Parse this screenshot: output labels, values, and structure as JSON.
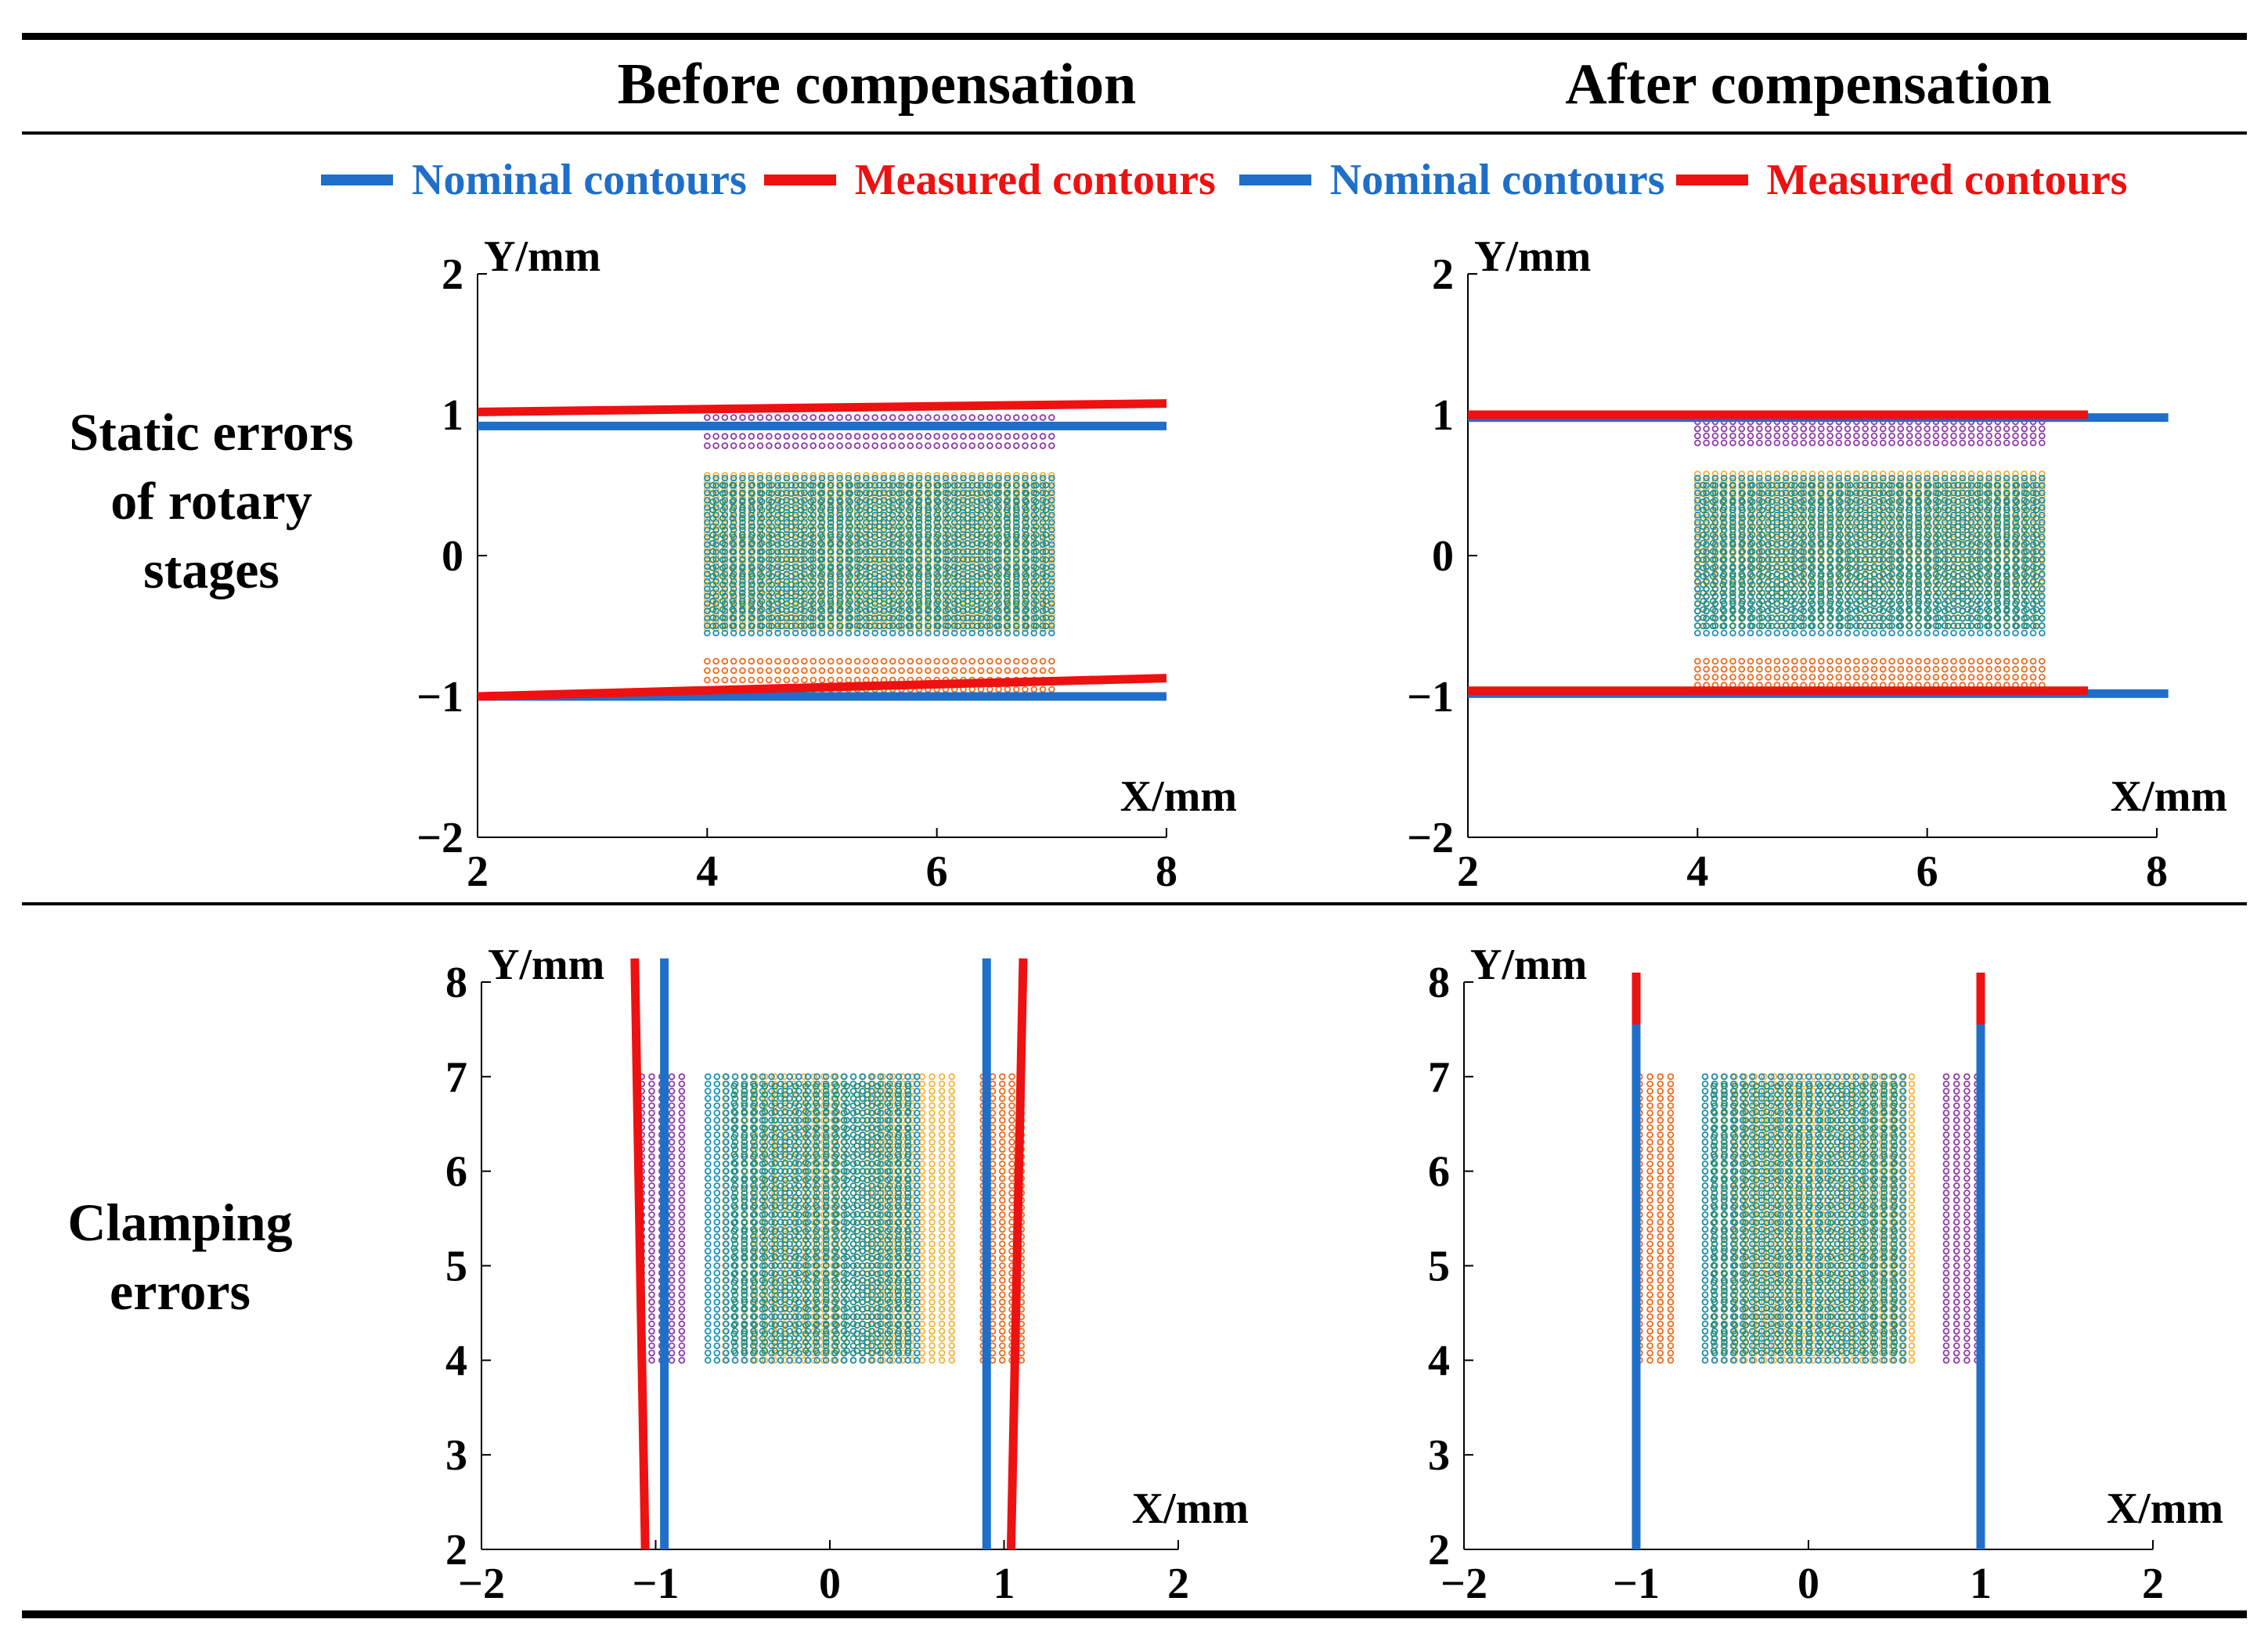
{
  "column_titles": [
    "Before compensation",
    "After compensation"
  ],
  "row_labels": [
    [
      "Static errors",
      "of rotary",
      "stages"
    ],
    [
      "Clamping",
      "errors"
    ]
  ],
  "legend": [
    {
      "label": "Nominal contours",
      "color": "#1f6fc9"
    },
    {
      "label": "Measured contours",
      "color": "#ee1111"
    },
    {
      "label": "Nominal contours",
      "color": "#1f6fc9"
    },
    {
      "label": "Measured contours",
      "color": "#ee1111"
    }
  ],
  "colors": {
    "nominal": "#1f6fc9",
    "measured": "#ee1111",
    "purple": "#8e3aa8",
    "orange": "#ec6a1c",
    "yellow": "#f2b43a",
    "teal": "#1b8fb8",
    "green": "#2a8f6a"
  },
  "chart_data": [
    {
      "id": "static-before",
      "type": "scatter",
      "xlabel": "X/mm",
      "ylabel": "Y/mm",
      "xlim": [
        2,
        8
      ],
      "ylim": [
        -2,
        2
      ],
      "xticks": [
        2,
        4,
        6,
        8
      ],
      "yticks": [
        -2,
        -1,
        0,
        1,
        2
      ],
      "lines": [
        {
          "kind": "nominal",
          "x": [
            2,
            8
          ],
          "y": [
            0.92,
            0.92
          ]
        },
        {
          "kind": "nominal",
          "x": [
            2,
            8
          ],
          "y": [
            -1.0,
            -1.0
          ]
        },
        {
          "kind": "measured",
          "x": [
            2,
            8
          ],
          "y": [
            1.02,
            1.08
          ]
        },
        {
          "kind": "measured",
          "x": [
            2,
            8
          ],
          "y": [
            -1.0,
            -0.87
          ]
        }
      ],
      "point_regions": [
        {
          "color": "purple",
          "x": [
            4.0,
            7.0
          ],
          "y": [
            0.78,
            0.98
          ],
          "nx": 40,
          "ny": 4
        },
        {
          "color": "orange",
          "x": [
            4.0,
            7.0
          ],
          "y": [
            -0.95,
            -0.75
          ],
          "nx": 40,
          "ny": 4
        },
        {
          "color": "yellow",
          "x": [
            4.0,
            7.0
          ],
          "y": [
            -0.52,
            0.57
          ],
          "nx": 40,
          "ny": 22
        },
        {
          "color": "teal",
          "x": [
            4.0,
            7.0
          ],
          "y": [
            -0.55,
            0.55
          ],
          "nx": 40,
          "ny": 22
        },
        {
          "color": "green",
          "x": [
            4.05,
            6.95
          ],
          "y": [
            -0.5,
            0.5
          ],
          "nx": 35,
          "ny": 18
        }
      ]
    },
    {
      "id": "static-after",
      "type": "scatter",
      "xlabel": "X/mm",
      "ylabel": "Y/mm",
      "xlim": [
        2,
        8
      ],
      "ylim": [
        -2,
        2
      ],
      "xticks": [
        2,
        4,
        6,
        8
      ],
      "yticks": [
        -2,
        -1,
        0,
        1,
        2
      ],
      "lines": [
        {
          "kind": "nominal",
          "x": [
            2,
            8.1
          ],
          "y": [
            0.98,
            0.98
          ]
        },
        {
          "kind": "nominal",
          "x": [
            2,
            8.1
          ],
          "y": [
            -0.98,
            -0.98
          ]
        },
        {
          "kind": "measured",
          "x": [
            2,
            7.4
          ],
          "y": [
            1.0,
            1.0
          ]
        },
        {
          "kind": "measured",
          "x": [
            2,
            7.4
          ],
          "y": [
            -0.96,
            -0.96
          ]
        }
      ],
      "point_regions": [
        {
          "color": "purple",
          "x": [
            4.0,
            7.0
          ],
          "y": [
            0.8,
            0.95
          ],
          "nx": 40,
          "ny": 4
        },
        {
          "color": "orange",
          "x": [
            4.0,
            7.0
          ],
          "y": [
            -0.92,
            -0.75
          ],
          "nx": 40,
          "ny": 4
        },
        {
          "color": "yellow",
          "x": [
            4.0,
            7.0
          ],
          "y": [
            -0.5,
            0.58
          ],
          "nx": 40,
          "ny": 22
        },
        {
          "color": "teal",
          "x": [
            4.0,
            7.0
          ],
          "y": [
            -0.55,
            0.55
          ],
          "nx": 40,
          "ny": 22
        },
        {
          "color": "green",
          "x": [
            4.05,
            6.95
          ],
          "y": [
            -0.5,
            0.5
          ],
          "nx": 35,
          "ny": 18
        }
      ]
    },
    {
      "id": "clamping-before",
      "type": "scatter",
      "xlabel": "X/mm",
      "ylabel": "Y/mm",
      "xlim": [
        -2,
        2
      ],
      "ylim": [
        2,
        8
      ],
      "xticks": [
        -2,
        -1,
        0,
        1,
        2
      ],
      "yticks": [
        2,
        3,
        4,
        5,
        6,
        7,
        8
      ],
      "lines": [
        {
          "kind": "nominal",
          "x": [
            -0.95,
            -0.95
          ],
          "y": [
            2,
            8.25
          ]
        },
        {
          "kind": "nominal",
          "x": [
            0.9,
            0.9
          ],
          "y": [
            2,
            8.25
          ]
        },
        {
          "kind": "measured",
          "x": [
            -1.06,
            -1.12
          ],
          "y": [
            2,
            8.25
          ]
        },
        {
          "kind": "measured",
          "x": [
            1.04,
            1.11
          ],
          "y": [
            2,
            8.25
          ]
        }
      ],
      "point_regions": [
        {
          "color": "purple",
          "x": [
            -1.08,
            -0.85
          ],
          "y": [
            4.0,
            7.0
          ],
          "nx": 5,
          "ny": 40
        },
        {
          "color": "orange",
          "x": [
            0.88,
            1.1
          ],
          "y": [
            4.0,
            7.0
          ],
          "nx": 5,
          "ny": 40
        },
        {
          "color": "yellow",
          "x": [
            -0.6,
            0.7
          ],
          "y": [
            4.0,
            7.0
          ],
          "nx": 24,
          "ny": 40
        },
        {
          "color": "teal",
          "x": [
            -0.7,
            0.5
          ],
          "y": [
            4.0,
            7.0
          ],
          "nx": 24,
          "ny": 40
        },
        {
          "color": "green",
          "x": [
            -0.55,
            0.45
          ],
          "y": [
            4.1,
            6.9
          ],
          "nx": 18,
          "ny": 32
        }
      ]
    },
    {
      "id": "clamping-after",
      "type": "scatter",
      "xlabel": "X/mm",
      "ylabel": "Y/mm",
      "xlim": [
        -2,
        2
      ],
      "ylim": [
        2,
        8
      ],
      "xticks": [
        -2,
        -1,
        0,
        1,
        2
      ],
      "yticks": [
        2,
        3,
        4,
        5,
        6,
        7,
        8
      ],
      "lines": [
        {
          "kind": "measured",
          "x": [
            -1.0,
            -1.0
          ],
          "y": [
            2,
            8.1
          ]
        },
        {
          "kind": "measured",
          "x": [
            1.0,
            1.0
          ],
          "y": [
            2,
            8.1
          ]
        },
        {
          "kind": "nominal",
          "x": [
            -1.0,
            -1.0
          ],
          "y": [
            2,
            7.55
          ]
        },
        {
          "kind": "nominal",
          "x": [
            1.0,
            1.0
          ],
          "y": [
            2,
            7.55
          ]
        }
      ],
      "point_regions": [
        {
          "color": "orange",
          "x": [
            -0.98,
            -0.8
          ],
          "y": [
            4.0,
            7.0
          ],
          "nx": 4,
          "ny": 40
        },
        {
          "color": "purple",
          "x": [
            0.8,
            0.98
          ],
          "y": [
            4.0,
            7.0
          ],
          "nx": 4,
          "ny": 40
        },
        {
          "color": "yellow",
          "x": [
            -0.6,
            0.6
          ],
          "y": [
            4.0,
            7.0
          ],
          "nx": 22,
          "ny": 40
        },
        {
          "color": "teal",
          "x": [
            -0.6,
            0.55
          ],
          "y": [
            4.0,
            7.0
          ],
          "nx": 22,
          "ny": 40
        },
        {
          "color": "green",
          "x": [
            -0.55,
            0.5
          ],
          "y": [
            4.1,
            6.9
          ],
          "nx": 18,
          "ny": 32
        }
      ]
    }
  ]
}
